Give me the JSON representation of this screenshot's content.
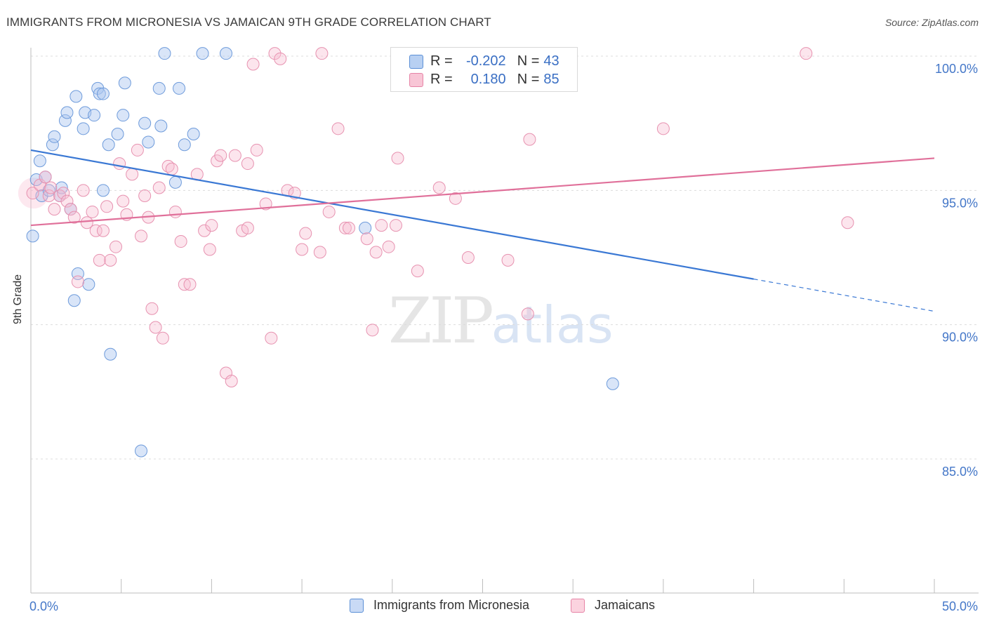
{
  "title": "IMMIGRANTS FROM MICRONESIA VS JAMAICAN 9TH GRADE CORRELATION CHART",
  "source": "Source: ZipAtlas.com",
  "watermark": {
    "zip": "ZIP",
    "atlas": "atlas"
  },
  "legend": {
    "rows": [
      {
        "r_label": "R =",
        "r_value": "-0.202",
        "n_label": "N =",
        "n_value": "43",
        "fill": "#b8d0f2",
        "stroke": "#5b8fd6"
      },
      {
        "r_label": "R =",
        "r_value": "0.180",
        "n_label": "N =",
        "n_value": "85",
        "fill": "#f8c6d6",
        "stroke": "#e684a6"
      }
    ]
  },
  "bottom_legend": [
    {
      "label": "Immigrants from Micronesia",
      "fill": "#c9daf5",
      "stroke": "#5b8fd6"
    },
    {
      "label": "Jamaicans",
      "fill": "#fbd3df",
      "stroke": "#e684a6"
    }
  ],
  "chart_data": {
    "type": "scatter",
    "title": "IMMIGRANTS FROM MICRONESIA VS JAMAICAN 9TH GRADE CORRELATION CHART",
    "xlabel": "",
    "ylabel": "9th Grade",
    "xlim": [
      0,
      50
    ],
    "ylim": [
      80.3,
      101.0
    ],
    "x_ticks": [
      0,
      50
    ],
    "x_tick_labels": [
      "0.0%",
      "50.0%"
    ],
    "y_ticks": [
      85,
      90,
      95,
      100
    ],
    "y_tick_labels": [
      "85.0%",
      "90.0%",
      "95.0%",
      "100.0%"
    ],
    "grid": "horizontal dashed",
    "colors": {
      "micronesia": "#3a78d4",
      "jamaicans": "#e0709a",
      "tick_label": "#4477c8"
    },
    "series": [
      {
        "name": "Immigrants from Micronesia",
        "trend": {
          "x": [
            0,
            40,
            50
          ],
          "y": [
            96.5,
            91.7,
            90.5
          ],
          "solid_until": 40
        },
        "points": [
          [
            0.1,
            93.3
          ],
          [
            0.3,
            95.4
          ],
          [
            0.5,
            96.1
          ],
          [
            0.6,
            94.8
          ],
          [
            0.8,
            95.5
          ],
          [
            1.0,
            95.0
          ],
          [
            1.2,
            96.7
          ],
          [
            1.3,
            97.0
          ],
          [
            1.6,
            94.8
          ],
          [
            1.7,
            95.1
          ],
          [
            1.9,
            97.6
          ],
          [
            2.0,
            97.9
          ],
          [
            2.2,
            94.3
          ],
          [
            2.4,
            90.9
          ],
          [
            2.5,
            98.5
          ],
          [
            2.6,
            91.9
          ],
          [
            2.9,
            97.3
          ],
          [
            3.0,
            97.9
          ],
          [
            3.2,
            91.5
          ],
          [
            3.5,
            97.8
          ],
          [
            3.7,
            98.8
          ],
          [
            3.8,
            98.6
          ],
          [
            4.0,
            98.6
          ],
          [
            4.3,
            96.7
          ],
          [
            4.4,
            88.9
          ],
          [
            4.8,
            97.1
          ],
          [
            5.1,
            97.8
          ],
          [
            5.2,
            99.0
          ],
          [
            6.1,
            85.3
          ],
          [
            6.3,
            97.5
          ],
          [
            6.5,
            96.8
          ],
          [
            7.1,
            98.8
          ],
          [
            7.2,
            97.4
          ],
          [
            7.4,
            100.1
          ],
          [
            8.0,
            95.3
          ],
          [
            8.2,
            98.8
          ],
          [
            8.5,
            96.7
          ],
          [
            9.0,
            97.1
          ],
          [
            9.5,
            100.1
          ],
          [
            10.8,
            100.1
          ],
          [
            18.5,
            93.6
          ],
          [
            32.2,
            87.8
          ],
          [
            4.0,
            95.0
          ]
        ]
      },
      {
        "name": "Jamaicans",
        "trend": {
          "x": [
            0,
            50
          ],
          "y": [
            93.7,
            96.2
          ],
          "solid_until": 50
        },
        "points": [
          [
            0.1,
            94.9
          ],
          [
            0.5,
            95.2
          ],
          [
            0.8,
            95.5
          ],
          [
            1.0,
            94.8
          ],
          [
            1.1,
            95.1
          ],
          [
            1.3,
            94.3
          ],
          [
            1.6,
            94.8
          ],
          [
            1.8,
            94.9
          ],
          [
            2.0,
            94.6
          ],
          [
            2.2,
            94.3
          ],
          [
            2.4,
            94.0
          ],
          [
            2.6,
            91.6
          ],
          [
            2.9,
            95.0
          ],
          [
            3.1,
            93.8
          ],
          [
            3.4,
            94.2
          ],
          [
            3.6,
            93.5
          ],
          [
            3.8,
            92.4
          ],
          [
            4.0,
            93.5
          ],
          [
            4.2,
            94.4
          ],
          [
            4.4,
            92.4
          ],
          [
            4.7,
            92.9
          ],
          [
            4.9,
            96.0
          ],
          [
            5.1,
            94.6
          ],
          [
            5.3,
            94.1
          ],
          [
            5.6,
            95.6
          ],
          [
            5.9,
            96.5
          ],
          [
            6.1,
            93.3
          ],
          [
            6.3,
            94.8
          ],
          [
            6.5,
            94.0
          ],
          [
            6.7,
            90.6
          ],
          [
            6.9,
            89.9
          ],
          [
            7.1,
            95.1
          ],
          [
            7.3,
            89.5
          ],
          [
            7.6,
            95.9
          ],
          [
            7.8,
            95.8
          ],
          [
            8.0,
            94.2
          ],
          [
            8.3,
            93.1
          ],
          [
            8.5,
            91.5
          ],
          [
            8.8,
            91.5
          ],
          [
            9.2,
            95.6
          ],
          [
            9.6,
            93.5
          ],
          [
            9.9,
            92.8
          ],
          [
            10.0,
            93.7
          ],
          [
            10.3,
            96.1
          ],
          [
            10.5,
            96.3
          ],
          [
            10.8,
            88.2
          ],
          [
            11.1,
            87.9
          ],
          [
            11.3,
            96.3
          ],
          [
            11.7,
            93.5
          ],
          [
            12.0,
            96.0
          ],
          [
            12.3,
            99.7
          ],
          [
            12.5,
            96.5
          ],
          [
            13.0,
            94.5
          ],
          [
            13.3,
            89.5
          ],
          [
            13.5,
            100.1
          ],
          [
            13.8,
            99.9
          ],
          [
            14.2,
            95.0
          ],
          [
            14.6,
            94.9
          ],
          [
            15.0,
            92.8
          ],
          [
            15.2,
            93.4
          ],
          [
            16.0,
            92.7
          ],
          [
            16.1,
            100.1
          ],
          [
            16.5,
            94.2
          ],
          [
            17.0,
            97.3
          ],
          [
            17.4,
            93.6
          ],
          [
            17.6,
            93.6
          ],
          [
            18.6,
            93.2
          ],
          [
            18.9,
            89.8
          ],
          [
            19.1,
            92.7
          ],
          [
            19.4,
            93.7
          ],
          [
            19.8,
            92.9
          ],
          [
            20.2,
            93.7
          ],
          [
            20.3,
            96.2
          ],
          [
            21.4,
            92.0
          ],
          [
            22.6,
            95.1
          ],
          [
            23.5,
            94.7
          ],
          [
            24.2,
            92.5
          ],
          [
            26.4,
            92.4
          ],
          [
            27.0,
            100.1
          ],
          [
            27.5,
            90.4
          ],
          [
            27.6,
            96.9
          ],
          [
            35.0,
            97.3
          ],
          [
            42.9,
            100.1
          ],
          [
            45.2,
            93.8
          ],
          [
            12.0,
            93.6
          ]
        ]
      }
    ]
  }
}
